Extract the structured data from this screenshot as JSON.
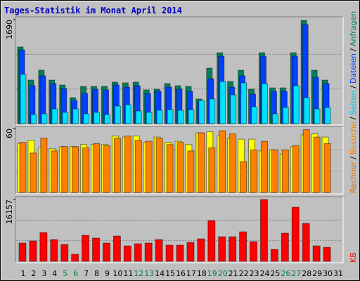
{
  "chart_data": {
    "type": "bar",
    "title": "Tages-Statistik im Monat April 2014",
    "title_color": "#0000c0",
    "categories": [
      "1",
      "2",
      "3",
      "4",
      "5",
      "6",
      "7",
      "8",
      "9",
      "10",
      "11",
      "12",
      "13",
      "14",
      "15",
      "16",
      "17",
      "18",
      "19",
      "20",
      "21",
      "22",
      "23",
      "24",
      "25",
      "26",
      "27",
      "28",
      "29",
      "30",
      "31"
    ],
    "label_colors": [
      "#000000",
      "#000000",
      "#000000",
      "#000000",
      "#008040",
      "#008040",
      "#000000",
      "#000000",
      "#000000",
      "#000000",
      "#000000",
      "#008040",
      "#008040",
      "#000000",
      "#000000",
      "#000000",
      "#000000",
      "#000000",
      "#008040",
      "#008040",
      "#000000",
      "#000000",
      "#000000",
      "#000000",
      "#000000",
      "#008040",
      "#008040",
      "#000000",
      "#000000",
      "#000000",
      "#000000"
    ],
    "legend_separator": "/",
    "panels": [
      {
        "ylim": [
          0,
          1690
        ],
        "yticks": [
          1690
        ],
        "series": [
          {
            "name": "Anfragen",
            "color": "#00805c",
            "text_color": "#00805c",
            "values": [
              1245,
              708,
              868,
              708,
              628,
              423,
              605,
              605,
              605,
              674,
              662,
              674,
              548,
              560,
              651,
              617,
              605,
              400,
              902,
              1153,
              685,
              868,
              560,
              1153,
              582,
              582,
              1153,
              1679,
              868,
              708,
              null
            ]
          },
          {
            "name": "Dateien",
            "color": "#0040ff",
            "text_color": "#0040ff",
            "values": [
              1199,
              617,
              777,
              651,
              571,
              377,
              491,
              560,
              548,
              628,
              594,
              617,
              491,
              525,
              594,
              560,
              525,
              354,
              731,
              1096,
              594,
              777,
              480,
              1096,
              525,
              525,
              1096,
              1610,
              754,
              651,
              null
            ]
          },
          {
            "name": "Seiten",
            "color": "#00e0ff",
            "text_color": "#00c8e8",
            "values": [
              799,
              148,
              160,
              240,
              183,
              240,
              160,
              183,
              148,
              286,
              308,
              206,
              183,
              217,
              228,
              217,
              228,
              377,
              400,
              685,
              468,
              662,
              274,
              651,
              160,
              263,
              617,
              423,
              240,
              263,
              null
            ]
          }
        ]
      },
      {
        "ylim": [
          0,
          60
        ],
        "yticks": [
          60
        ],
        "series": [
          {
            "name": "Besuche",
            "color": "#ffff00",
            "text_color": "#ff8000",
            "values": [
              46,
              49,
              42,
              41,
              43,
              43,
              45,
              45,
              45,
              53,
              52,
              53,
              47,
              52,
              47,
              48,
              45,
              56,
              57,
              53,
              51,
              50,
              50,
              39,
              40,
              36,
              43,
              54,
              55,
              52,
              null
            ]
          },
          {
            "name": "Rechner",
            "color": "#ff8000",
            "text_color": "#e07000",
            "values": [
              47,
              37,
              51,
              39,
              43,
              43,
              42,
              46,
              44,
              51,
              53,
              49,
              48,
              51,
              45,
              47,
              39,
              56,
              42,
              58,
              55,
              29,
              40,
              48,
              40,
              40,
              44,
              59,
              52,
              46,
              null
            ]
          }
        ]
      },
      {
        "ylim": [
          0,
          16157
        ],
        "yticks": [
          16157
        ],
        "series": [
          {
            "name": "KB",
            "color": "#ff0000",
            "text_color": "#ff0000",
            "values": [
              4774,
              5324,
              7528,
              5692,
              4406,
              1836,
              6793,
              6059,
              4774,
              6610,
              4039,
              4590,
              4774,
              5692,
              4223,
              4223,
              4957,
              5875,
              10649,
              6426,
              6426,
              7711,
              5141,
              16157,
              3121,
              7344,
              14137,
              9914,
              4039,
              3672,
              null
            ]
          }
        ]
      }
    ]
  }
}
